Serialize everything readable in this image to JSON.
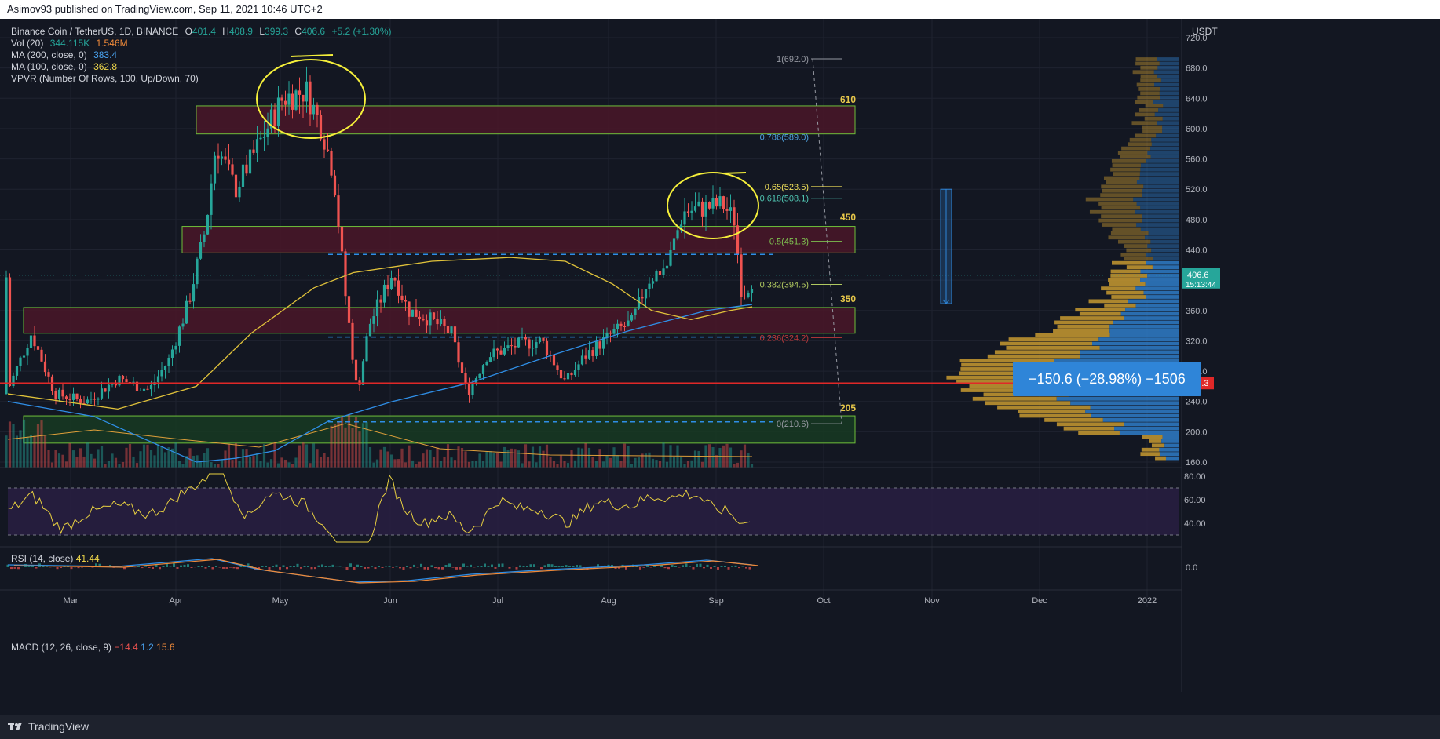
{
  "header": {
    "published_by": "Asimov93 published on TradingView.com, Sep 11, 2021 10:46 UTC+2"
  },
  "footer": {
    "brand": "TradingView"
  },
  "symbol": {
    "name": "Binance Coin / TetherUS, 1D, BINANCE",
    "o_label": "O",
    "open": "401.4",
    "h_label": "H",
    "high": "408.9",
    "l_label": "L",
    "low": "399.3",
    "c_label": "C",
    "close": "406.6",
    "change": "+5.2 (+1.30%)"
  },
  "indicators": {
    "vol": {
      "label": "Vol (20)",
      "v1": "344.115K",
      "v2": "1.546M"
    },
    "ma200": {
      "label": "MA (200, close, 0)",
      "value": "383.4"
    },
    "ma100": {
      "label": "MA (100, close, 0)",
      "value": "362.8"
    },
    "vpvr": {
      "label": "VPVR (Number Of Rows, 100, Up/Down, 70)"
    },
    "rsi": {
      "label": "RSI (14, close)",
      "value": "41.44"
    },
    "macd": {
      "label": "MACD (12, 26, close, 9)",
      "v1": "−14.4",
      "v2": "1.2",
      "v3": "15.6"
    }
  },
  "currency": "USDT",
  "price_axis": [
    "720.0",
    "680.0",
    "640.0",
    "600.0",
    "560.0",
    "520.0",
    "480.0",
    "440.0",
    "400.0",
    "360.0",
    "320.0",
    "280.0",
    "240.0",
    "200.0",
    "160.0"
  ],
  "rsi_axis": [
    "80.00",
    "60.00",
    "40.00"
  ],
  "macd_axis": [
    "0.0"
  ],
  "time_axis": [
    "Mar",
    "Apr",
    "May",
    "Jun",
    "Jul",
    "Aug",
    "Sep",
    "Oct",
    "Nov",
    "Dec",
    "2022"
  ],
  "current_price": {
    "value": "406.6",
    "countdown": "15:13:44"
  },
  "red_line_price": "264.3",
  "fib_levels": [
    {
      "label": "1(692.0)",
      "price": 692,
      "color": "#9598a1"
    },
    {
      "label": "0.786(589.0)",
      "price": 589,
      "color": "#4fa3e0"
    },
    {
      "label": "0.65(523.5)",
      "price": 523.5,
      "color": "#f0e05a"
    },
    {
      "label": "0.618(508.1)",
      "price": 508.1,
      "color": "#4fc3b0"
    },
    {
      "label": "0.5(451.3)",
      "price": 451.3,
      "color": "#7ec050"
    },
    {
      "label": "0.382(394.5)",
      "price": 394.5,
      "color": "#b0c860"
    },
    {
      "label": "0.236(324.2)",
      "price": 324.2,
      "color": "#c0393b"
    },
    {
      "label": "0(210.6)",
      "price": 210.6,
      "color": "#9598a1"
    }
  ],
  "zone_labels": [
    "610",
    "450",
    "350",
    "205"
  ],
  "measure": {
    "text": "−150.6 (−28.98%) −1506"
  },
  "colors": {
    "up": "#26a69a",
    "down": "#ef5350",
    "ma200": "#2f8ee6",
    "ma100": "#e0c23a",
    "zone": "#7a1f3a",
    "zone_green": "#1f5a2a"
  }
}
